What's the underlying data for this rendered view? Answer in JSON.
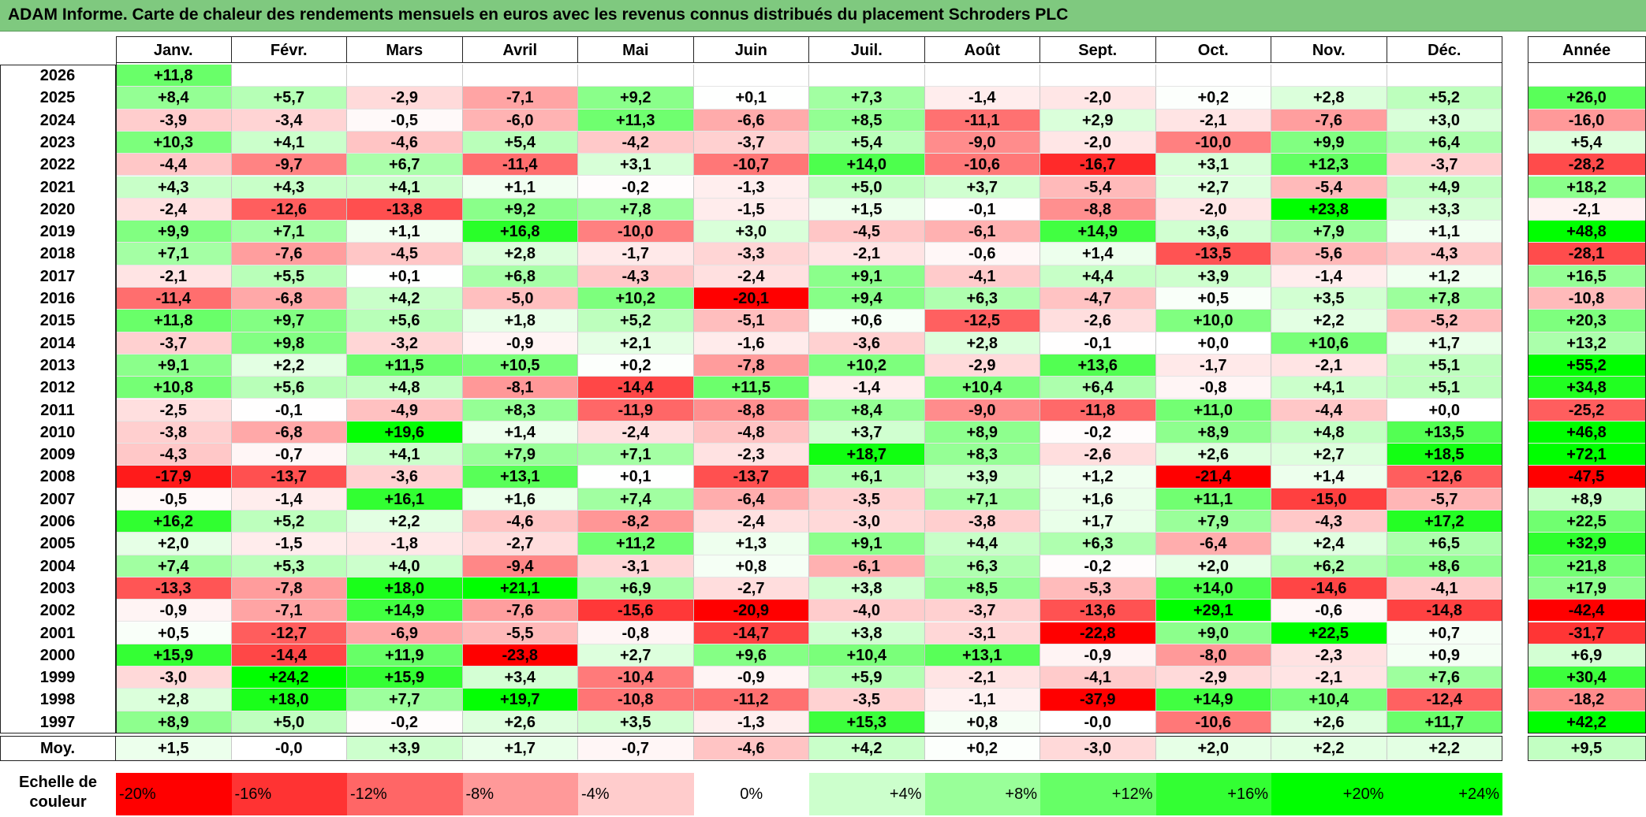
{
  "title": "ADAM Informe. Carte de chaleur des rendements mensuels en euros avec les revenus connus distribués du placement Schroders PLC",
  "chart_data": {
    "type": "heatmap",
    "columns": [
      "Janv.",
      "Févr.",
      "Mars",
      "Avril",
      "Mai",
      "Juin",
      "Juil.",
      "Août",
      "Sept.",
      "Oct.",
      "Nov.",
      "Déc."
    ],
    "year_column": "Année",
    "average_row_label": "Moy.",
    "rows": [
      {
        "year": "2026",
        "months": [
          "+11,8",
          "",
          "",
          "",
          "",
          "",
          "",
          "",
          "",
          "",
          "",
          ""
        ],
        "annual": ""
      },
      {
        "year": "2025",
        "months": [
          "+8,4",
          "+5,7",
          "-2,9",
          "-7,1",
          "+9,2",
          "+0,1",
          "+7,3",
          "-1,4",
          "-2,0",
          "+0,2",
          "+2,8",
          "+5,2"
        ],
        "annual": "+26,0"
      },
      {
        "year": "2024",
        "months": [
          "-3,9",
          "-3,4",
          "-0,5",
          "-6,0",
          "+11,3",
          "-6,6",
          "+8,5",
          "-11,1",
          "+2,9",
          "-2,1",
          "-7,6",
          "+3,0"
        ],
        "annual": "-16,0"
      },
      {
        "year": "2023",
        "months": [
          "+10,3",
          "+4,1",
          "-4,6",
          "+5,4",
          "-4,2",
          "-3,7",
          "+5,4",
          "-9,0",
          "-2,0",
          "-10,0",
          "+9,9",
          "+6,4"
        ],
        "annual": "+5,4"
      },
      {
        "year": "2022",
        "months": [
          "-4,4",
          "-9,7",
          "+6,7",
          "-11,4",
          "+3,1",
          "-10,7",
          "+14,0",
          "-10,6",
          "-16,7",
          "+3,1",
          "+12,3",
          "-3,7"
        ],
        "annual": "-28,2"
      },
      {
        "year": "2021",
        "months": [
          "+4,3",
          "+4,3",
          "+4,1",
          "+1,1",
          "-0,2",
          "-1,3",
          "+5,0",
          "+3,7",
          "-5,4",
          "+2,7",
          "-5,4",
          "+4,9"
        ],
        "annual": "+18,2"
      },
      {
        "year": "2020",
        "months": [
          "-2,4",
          "-12,6",
          "-13,8",
          "+9,2",
          "+7,8",
          "-1,5",
          "+1,5",
          "-0,1",
          "-8,8",
          "-2,0",
          "+23,8",
          "+3,3"
        ],
        "annual": "-2,1"
      },
      {
        "year": "2019",
        "months": [
          "+9,9",
          "+7,1",
          "+1,1",
          "+16,8",
          "-10,0",
          "+3,0",
          "-4,5",
          "-6,1",
          "+14,9",
          "+3,6",
          "+7,9",
          "+1,1"
        ],
        "annual": "+48,8"
      },
      {
        "year": "2018",
        "months": [
          "+7,1",
          "-7,6",
          "-4,5",
          "+2,8",
          "-1,7",
          "-3,3",
          "-2,1",
          "-0,6",
          "+1,4",
          "-13,5",
          "-5,6",
          "-4,3"
        ],
        "annual": "-28,1"
      },
      {
        "year": "2017",
        "months": [
          "-2,1",
          "+5,5",
          "+0,1",
          "+6,8",
          "-4,3",
          "-2,4",
          "+9,1",
          "-4,1",
          "+4,4",
          "+3,9",
          "-1,4",
          "+1,2"
        ],
        "annual": "+16,5"
      },
      {
        "year": "2016",
        "months": [
          "-11,4",
          "-6,8",
          "+4,2",
          "-5,0",
          "+10,2",
          "-20,1",
          "+9,4",
          "+6,3",
          "-4,7",
          "+0,5",
          "+3,5",
          "+7,8"
        ],
        "annual": "-10,8"
      },
      {
        "year": "2015",
        "months": [
          "+11,8",
          "+9,7",
          "+5,6",
          "+1,8",
          "+5,2",
          "-5,1",
          "+0,6",
          "-12,5",
          "-2,6",
          "+10,0",
          "+2,2",
          "-5,2"
        ],
        "annual": "+20,3"
      },
      {
        "year": "2014",
        "months": [
          "-3,7",
          "+9,8",
          "-3,2",
          "-0,9",
          "+2,1",
          "-1,6",
          "-3,6",
          "+2,8",
          "-0,1",
          "+0,0",
          "+10,6",
          "+1,7"
        ],
        "annual": "+13,2"
      },
      {
        "year": "2013",
        "months": [
          "+9,1",
          "+2,2",
          "+11,5",
          "+10,5",
          "+0,2",
          "-7,8",
          "+10,2",
          "-2,9",
          "+13,6",
          "-1,7",
          "-2,1",
          "+5,1"
        ],
        "annual": "+55,2"
      },
      {
        "year": "2012",
        "months": [
          "+10,8",
          "+5,6",
          "+4,8",
          "-8,1",
          "-14,4",
          "+11,5",
          "-1,4",
          "+10,4",
          "+6,4",
          "-0,8",
          "+4,1",
          "+5,1"
        ],
        "annual": "+34,8"
      },
      {
        "year": "2011",
        "months": [
          "-2,5",
          "-0,1",
          "-4,9",
          "+8,3",
          "-11,9",
          "-8,8",
          "+8,4",
          "-9,0",
          "-11,8",
          "+11,0",
          "-4,4",
          "+0,0"
        ],
        "annual": "-25,2"
      },
      {
        "year": "2010",
        "months": [
          "-3,8",
          "-6,8",
          "+19,6",
          "+1,4",
          "-2,4",
          "-4,8",
          "+3,7",
          "+8,9",
          "-0,2",
          "+8,9",
          "+4,8",
          "+13,5"
        ],
        "annual": "+46,8"
      },
      {
        "year": "2009",
        "months": [
          "-4,3",
          "-0,7",
          "+4,1",
          "+7,9",
          "+7,1",
          "-2,3",
          "+18,7",
          "+8,3",
          "-2,6",
          "+2,6",
          "+2,7",
          "+18,5"
        ],
        "annual": "+72,1"
      },
      {
        "year": "2008",
        "months": [
          "-17,9",
          "-13,7",
          "-3,6",
          "+13,1",
          "+0,1",
          "-13,7",
          "+6,1",
          "+3,9",
          "+1,2",
          "-21,4",
          "+1,4",
          "-12,6"
        ],
        "annual": "-47,5"
      },
      {
        "year": "2007",
        "months": [
          "-0,5",
          "-1,4",
          "+16,1",
          "+1,6",
          "+7,4",
          "-6,4",
          "-3,5",
          "+7,1",
          "+1,6",
          "+11,1",
          "-15,0",
          "-5,7"
        ],
        "annual": "+8,9"
      },
      {
        "year": "2006",
        "months": [
          "+16,2",
          "+5,2",
          "+2,2",
          "-4,6",
          "-8,2",
          "-2,4",
          "-3,0",
          "-3,8",
          "+1,7",
          "+7,9",
          "-4,3",
          "+17,2"
        ],
        "annual": "+22,5"
      },
      {
        "year": "2005",
        "months": [
          "+2,0",
          "-1,5",
          "-1,8",
          "-2,7",
          "+11,2",
          "+1,3",
          "+9,1",
          "+4,4",
          "+6,3",
          "-6,4",
          "+2,4",
          "+6,5"
        ],
        "annual": "+32,9"
      },
      {
        "year": "2004",
        "months": [
          "+7,4",
          "+5,3",
          "+4,0",
          "-9,4",
          "-3,1",
          "+0,8",
          "-6,1",
          "+6,3",
          "-0,2",
          "+2,0",
          "+6,2",
          "+8,6"
        ],
        "annual": "+21,8"
      },
      {
        "year": "2003",
        "months": [
          "-13,3",
          "-7,8",
          "+18,0",
          "+21,1",
          "+6,9",
          "-2,7",
          "+3,8",
          "+8,5",
          "-5,3",
          "+14,0",
          "-14,6",
          "-4,1"
        ],
        "annual": "+17,9"
      },
      {
        "year": "2002",
        "months": [
          "-0,9",
          "-7,1",
          "+14,9",
          "-7,6",
          "-15,6",
          "-20,9",
          "-4,0",
          "-3,7",
          "-13,6",
          "+29,1",
          "-0,6",
          "-14,8"
        ],
        "annual": "-42,4"
      },
      {
        "year": "2001",
        "months": [
          "+0,5",
          "-12,7",
          "-6,9",
          "-5,5",
          "-0,8",
          "-14,7",
          "+3,8",
          "-3,1",
          "-22,8",
          "+9,0",
          "+22,5",
          "+0,7"
        ],
        "annual": "-31,7"
      },
      {
        "year": "2000",
        "months": [
          "+15,9",
          "-14,4",
          "+11,9",
          "-23,8",
          "+2,7",
          "+9,6",
          "+10,4",
          "+13,1",
          "-0,9",
          "-8,0",
          "-2,3",
          "+0,9"
        ],
        "annual": "+6,9"
      },
      {
        "year": "1999",
        "months": [
          "-3,0",
          "+24,2",
          "+15,9",
          "+3,4",
          "-10,4",
          "-0,9",
          "+5,9",
          "-2,1",
          "-4,1",
          "-2,9",
          "-2,1",
          "+7,6"
        ],
        "annual": "+30,4"
      },
      {
        "year": "1998",
        "months": [
          "+2,8",
          "+18,0",
          "+7,7",
          "+19,7",
          "-10,8",
          "-11,2",
          "-3,5",
          "-1,1",
          "-37,9",
          "+14,9",
          "+10,4",
          "-12,4"
        ],
        "annual": "-18,2"
      },
      {
        "year": "1997",
        "months": [
          "+8,9",
          "+5,0",
          "-0,2",
          "+2,6",
          "+3,5",
          "-1,3",
          "+15,3",
          "+0,8",
          "-0,0",
          "-10,6",
          "+2,6",
          "+11,7"
        ],
        "annual": "+42,2"
      }
    ],
    "averages": {
      "months": [
        "+1,5",
        "-0,0",
        "+3,9",
        "+1,7",
        "-0,7",
        "-4,6",
        "+4,2",
        "+0,2",
        "-3,0",
        "+2,0",
        "+2,2",
        "+2,2"
      ],
      "annual": "+9,5"
    },
    "color_scale": {
      "label_line1": "Echelle de",
      "label_line2": "couleur",
      "stops": [
        "-20%",
        "-16%",
        "-12%",
        "-8%",
        "-4%",
        "0%",
        "+4%",
        "+8%",
        "+12%",
        "+16%",
        "+20%",
        "+24%"
      ],
      "negative_color": "#ff0000",
      "neutral_color": "#ffffff",
      "positive_color": "#00ff00"
    }
  }
}
